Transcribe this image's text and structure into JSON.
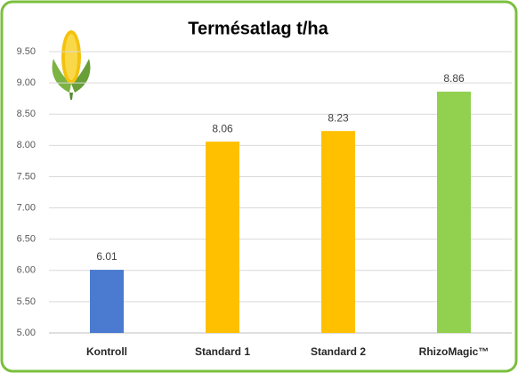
{
  "chart_data": {
    "type": "bar",
    "title": "Termésatlag t/ha",
    "categories": [
      "Kontroll",
      "Standard 1",
      "Standard 2",
      "RhizoMagic™"
    ],
    "values": [
      6.01,
      8.06,
      8.23,
      8.86
    ],
    "colors": [
      "#4a7bd0",
      "#ffc000",
      "#ffc000",
      "#92d050"
    ],
    "ylim": [
      5,
      9.5
    ],
    "yticks": [
      {
        "value": 5,
        "label": "5.00"
      },
      {
        "value": 5.5,
        "label": "5.50"
      },
      {
        "value": 6,
        "label": "6.00"
      },
      {
        "value": 6.5,
        "label": "6.50"
      },
      {
        "value": 7,
        "label": "7.00"
      },
      {
        "value": 7.5,
        "label": "7.50"
      },
      {
        "value": 8,
        "label": "8.00"
      },
      {
        "value": 8.5,
        "label": "8.50"
      },
      {
        "value": 9,
        "label": "9.00"
      },
      {
        "value": 9.5,
        "label": "9.50"
      }
    ],
    "grid": true
  }
}
